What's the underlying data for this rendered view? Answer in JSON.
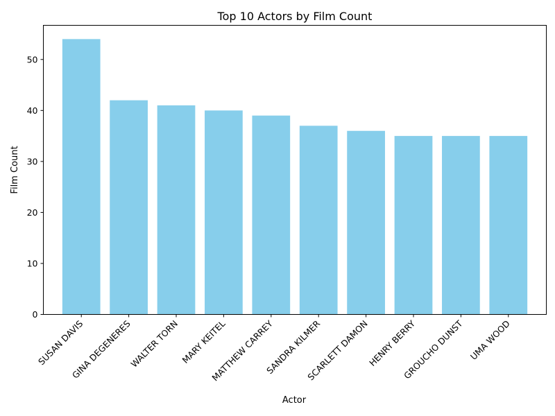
{
  "chart_data": {
    "type": "bar",
    "title": "Top 10 Actors by Film Count",
    "xlabel": "Actor",
    "ylabel": "Film Count",
    "categories": [
      "SUSAN DAVIS",
      "GINA DEGENERES",
      "WALTER TORN",
      "MARY KEITEL",
      "MATTHEW CARREY",
      "SANDRA KILMER",
      "SCARLETT DAMON",
      "HENRY BERRY",
      "GROUCHO DUNST",
      "UMA WOOD"
    ],
    "values": [
      54,
      42,
      41,
      40,
      39,
      37,
      36,
      35,
      35,
      35
    ],
    "ylim": [
      0,
      56.7
    ],
    "yticks": [
      0,
      10,
      20,
      30,
      40,
      50
    ],
    "grid": false,
    "bar_color": "#87ceeb"
  }
}
